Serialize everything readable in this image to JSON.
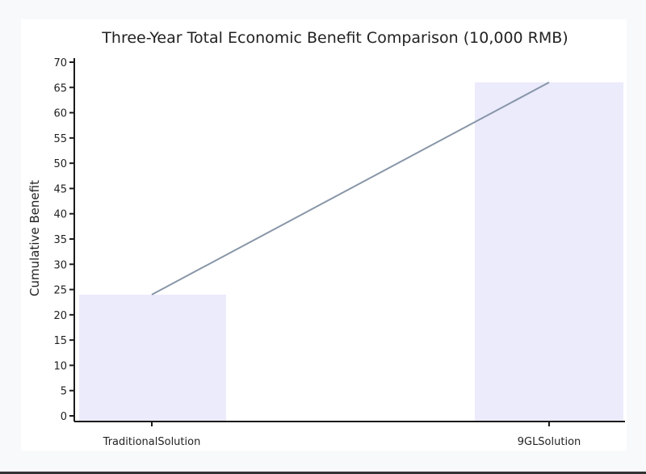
{
  "chart_data": {
    "type": "bar",
    "title": "Three-Year Total Economic Benefit Comparison (10,000 RMB)",
    "xlabel": "",
    "ylabel": "Cumulative Benefit",
    "categories": [
      "TraditionalSolution",
      "9GLSolution"
    ],
    "values": [
      24,
      66
    ],
    "overlay_line": {
      "type": "line",
      "values": [
        24,
        66
      ],
      "color": "#8896a8"
    },
    "ylim": [
      0,
      70
    ],
    "yticks": [
      0,
      5,
      10,
      15,
      20,
      25,
      30,
      35,
      40,
      45,
      50,
      55,
      60,
      65,
      70
    ],
    "grid": false,
    "legend": null,
    "colors": {
      "bar": "#ebebfc",
      "line": "#8896a8",
      "axis": "#1a1a1a",
      "background": "#f8f9fb",
      "card": "#ffffff"
    }
  }
}
